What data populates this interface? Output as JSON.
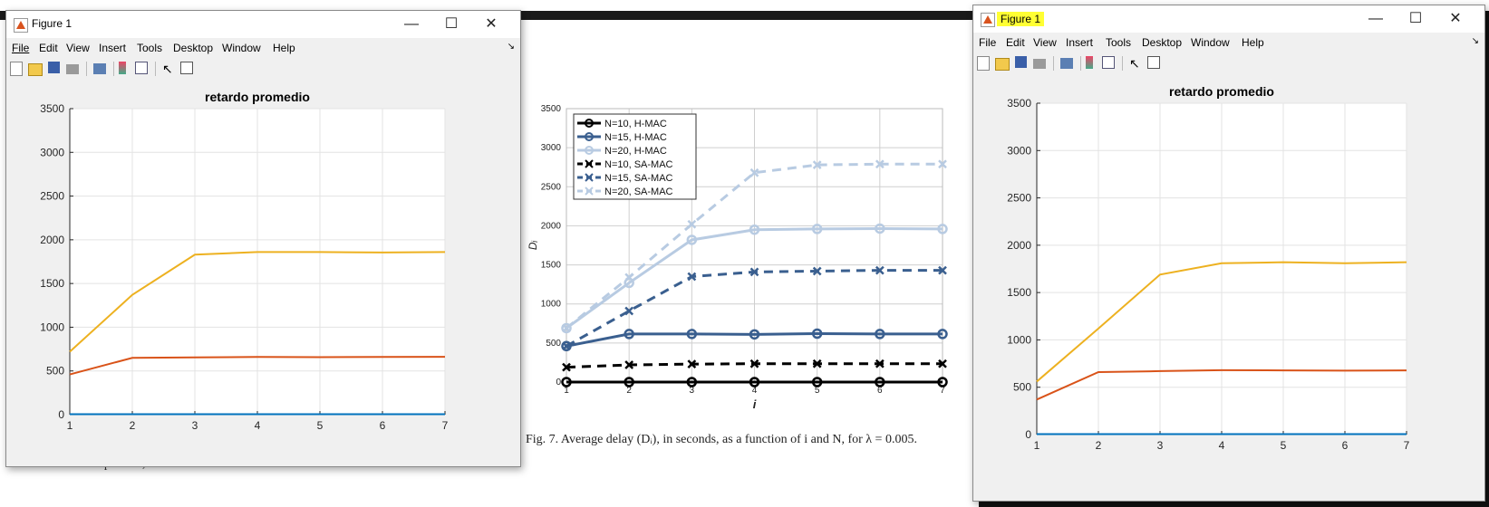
{
  "left_window": {
    "title": "Figure 1",
    "menu": [
      "File",
      "Edit",
      "View",
      "Insert",
      "Tools",
      "Desktop",
      "Window",
      "Help"
    ],
    "chart_title": "retardo promedio"
  },
  "right_window": {
    "title": "Figure 1",
    "menu": [
      "File",
      "Edit",
      "View",
      "Insert",
      "Tools",
      "Desktop",
      "Window",
      "Help"
    ],
    "chart_title": "retardo promedio"
  },
  "document": {
    "caption": "Fig. 7.  Average delay (Dᵢ), in seconds, as a function of i and N, for λ = 0.005.",
    "snippet": "Joules/packets, as a function of λ and N."
  },
  "window_controls": {
    "minimize": "—",
    "maximize": "☐",
    "close": "✕"
  },
  "chart_data": [
    {
      "type": "line",
      "title": "retardo promedio",
      "x": [
        1,
        2,
        3,
        4,
        5,
        6,
        7
      ],
      "xlim": [
        1,
        7
      ],
      "ylim": [
        0,
        3500
      ],
      "xticks": [
        1,
        2,
        3,
        4,
        5,
        6,
        7
      ],
      "yticks": [
        0,
        500,
        1000,
        1500,
        2000,
        2500,
        3000,
        3500
      ],
      "grid": true,
      "series": [
        {
          "values": [
            5,
            5,
            5,
            5,
            5,
            5,
            5
          ],
          "color": "#0072bd"
        },
        {
          "values": [
            460,
            650,
            655,
            660,
            658,
            660,
            662
          ],
          "color": "#d95319"
        },
        {
          "values": [
            720,
            1370,
            1830,
            1860,
            1860,
            1855,
            1860
          ],
          "color": "#edb120"
        }
      ]
    },
    {
      "type": "line",
      "x": [
        1,
        2,
        3,
        4,
        5,
        6,
        7
      ],
      "xlim": [
        1,
        7
      ],
      "ylim": [
        0,
        3500
      ],
      "xticks": [
        1,
        2,
        3,
        4,
        5,
        6,
        7
      ],
      "yticks": [
        0,
        500,
        1000,
        1500,
        2000,
        2500,
        3000,
        3500
      ],
      "ylabel": "Dᵢ",
      "xlabel": "i",
      "grid": true,
      "legend_position": "top-left",
      "series": [
        {
          "name": "N=10, H-MAC",
          "values": [
            0,
            0,
            0,
            0,
            0,
            0,
            0
          ],
          "color": "#000000",
          "dash": false,
          "marker": "o"
        },
        {
          "name": "N=15, H-MAC",
          "values": [
            460,
            615,
            615,
            610,
            620,
            615,
            615
          ],
          "color": "#3a5f8f",
          "dash": false,
          "marker": "o"
        },
        {
          "name": "N=20, H-MAC",
          "values": [
            690,
            1270,
            1820,
            1950,
            1960,
            1965,
            1960
          ],
          "color": "#b8cbe2",
          "dash": false,
          "marker": "o"
        },
        {
          "name": "N=10, SA-MAC",
          "values": [
            190,
            220,
            230,
            235,
            235,
            235,
            235
          ],
          "color": "#000000",
          "dash": true,
          "marker": "x"
        },
        {
          "name": "N=15, SA-MAC",
          "values": [
            460,
            910,
            1350,
            1410,
            1420,
            1430,
            1430
          ],
          "color": "#3a5f8f",
          "dash": true,
          "marker": "x"
        },
        {
          "name": "N=20, SA-MAC",
          "values": [
            690,
            1340,
            2020,
            2680,
            2780,
            2790,
            2790
          ],
          "color": "#b8cbe2",
          "dash": true,
          "marker": "x"
        }
      ]
    },
    {
      "type": "line",
      "title": "retardo promedio",
      "x": [
        1,
        2,
        3,
        4,
        5,
        6,
        7
      ],
      "xlim": [
        1,
        7
      ],
      "ylim": [
        0,
        3500
      ],
      "xticks": [
        1,
        2,
        3,
        4,
        5,
        6,
        7
      ],
      "yticks": [
        0,
        500,
        1000,
        1500,
        2000,
        2500,
        3000,
        3500
      ],
      "grid": true,
      "series": [
        {
          "values": [
            5,
            5,
            5,
            5,
            5,
            5,
            5
          ],
          "color": "#0072bd"
        },
        {
          "values": [
            370,
            660,
            670,
            680,
            678,
            675,
            678
          ],
          "color": "#d95319"
        },
        {
          "values": [
            560,
            1120,
            1690,
            1810,
            1820,
            1810,
            1820
          ],
          "color": "#edb120"
        }
      ]
    }
  ]
}
